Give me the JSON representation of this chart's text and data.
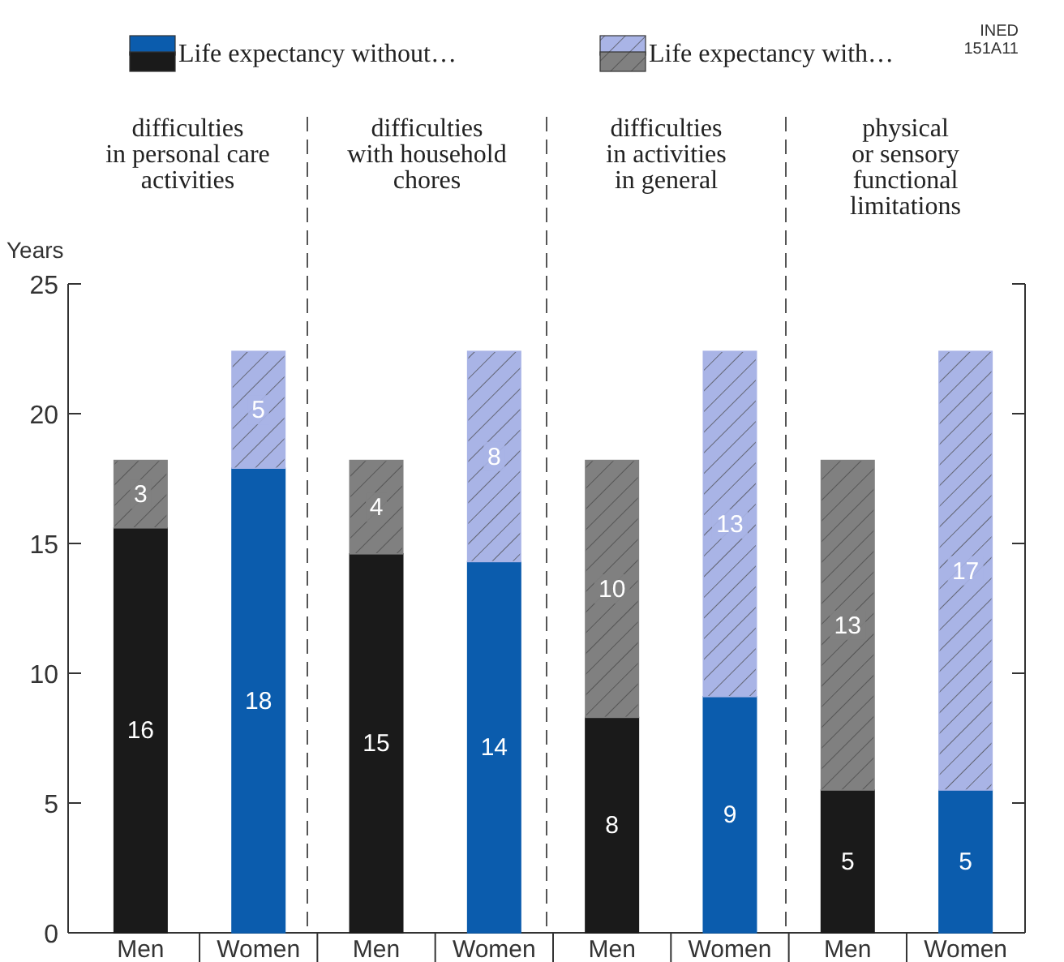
{
  "chart_data": {
    "type": "bar",
    "stacked": true,
    "ylabel": "Years",
    "ylim": [
      0,
      25
    ],
    "yticks": [
      0,
      5,
      10,
      15,
      20,
      25
    ],
    "grid": false,
    "legend": "top",
    "categories": [
      "Men",
      "Women",
      "Men",
      "Women",
      "Men",
      "Women",
      "Men",
      "Women"
    ],
    "series": [
      {
        "name": "Life expectancy without…",
        "colors": [
          "#1a1a1a",
          "#0b5cad",
          "#1a1a1a",
          "#0b5cad",
          "#1a1a1a",
          "#0b5cad",
          "#1a1a1a",
          "#0b5cad"
        ],
        "values": [
          15.6,
          17.9,
          14.6,
          14.3,
          8.3,
          9.1,
          5.5,
          5.5
        ],
        "value_labels": [
          "16",
          "18",
          "15",
          "14",
          "8",
          "9",
          "5",
          "5"
        ]
      },
      {
        "name": "Life expectancy with…",
        "colors": [
          "#808080",
          "#a9b4e6",
          "#808080",
          "#a9b4e6",
          "#808080",
          "#a9b4e6",
          "#808080",
          "#a9b4e6"
        ],
        "values": [
          2.6,
          4.5,
          3.6,
          8.1,
          9.9,
          13.3,
          12.7,
          16.9
        ],
        "value_labels": [
          "3",
          "5",
          "4",
          "8",
          "10",
          "13",
          "13",
          "17"
        ]
      }
    ],
    "annotations": [
      "difficulties\nin personal care\nactivities",
      "difficulties\nwith household\nchores",
      "difficulties\nin activities\nin general",
      "physical\nor sensory\nfunctional\nlimitations",
      "INED\n151A11"
    ]
  }
}
